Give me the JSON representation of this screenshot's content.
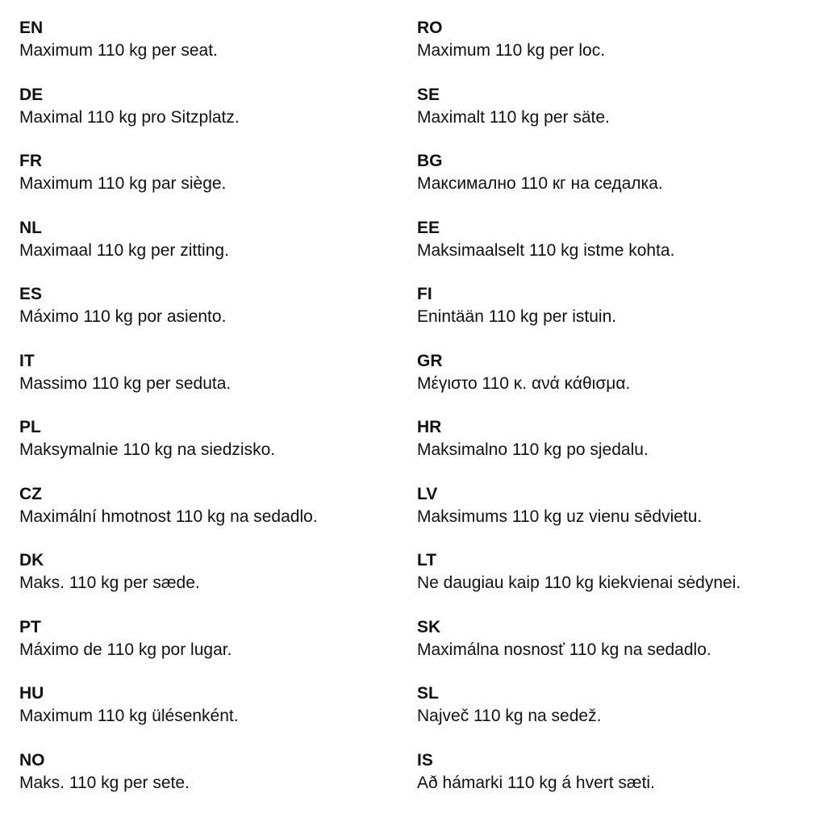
{
  "left_column": [
    {
      "code": "EN",
      "text": "Maximum 110 kg per seat."
    },
    {
      "code": "DE",
      "text": "Maximal 110 kg pro Sitzplatz."
    },
    {
      "code": "FR",
      "text": "Maximum 110 kg par siège."
    },
    {
      "code": "NL",
      "text": "Maximaal 110 kg per zitting."
    },
    {
      "code": "ES",
      "text": "Máximo 110 kg por asiento."
    },
    {
      "code": "IT",
      "text": "Massimo 110 kg per seduta."
    },
    {
      "code": "PL",
      "text": "Maksymalnie 110 kg na siedzisko."
    },
    {
      "code": "CZ",
      "text": "Maximální hmotnost 110 kg na sedadlo."
    },
    {
      "code": "DK",
      "text": "Maks. 110 kg per sæde."
    },
    {
      "code": "PT",
      "text": "Máximo de 110 kg por lugar."
    },
    {
      "code": "HU",
      "text": "Maximum 110 kg ülésenként."
    },
    {
      "code": "NO",
      "text": "Maks. 110 kg per sete."
    }
  ],
  "right_column": [
    {
      "code": "RO",
      "text": "Maximum 110 kg per loc."
    },
    {
      "code": "SE",
      "text": "Maximalt 110 kg per säte."
    },
    {
      "code": "BG",
      "text": "Максимално 110 кг на седалка."
    },
    {
      "code": "EE",
      "text": "Maksimaalselt 110 kg istme kohta."
    },
    {
      "code": "FI",
      "text": "Enintään 110 kg per istuin."
    },
    {
      "code": "GR",
      "text": "Μέγιστο 110 κ. ανά κάθισμα."
    },
    {
      "code": "HR",
      "text": "Maksimalno 110 kg po sjedalu."
    },
    {
      "code": "LV",
      "text": "Maksimums 110 kg uz vienu sēdvietu."
    },
    {
      "code": "LT",
      "text": "Ne daugiau kaip 110 kg kiekvienai sėdynei."
    },
    {
      "code": "SK",
      "text": "Maximálna nosnosť 110 kg na sedadlo."
    },
    {
      "code": "SL",
      "text": "Največ 110 kg na sedež."
    },
    {
      "code": "IS",
      "text": "Að hámarki 110 kg á hvert sæti."
    }
  ]
}
